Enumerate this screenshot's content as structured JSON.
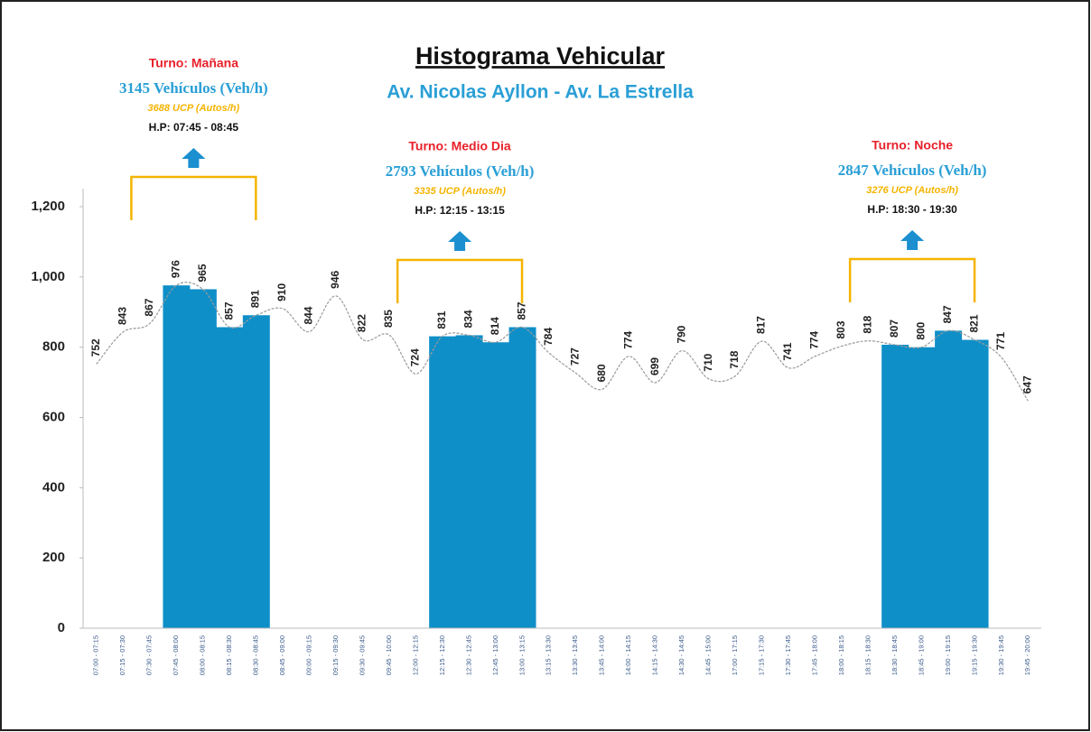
{
  "chart_data": {
    "type": "bar+line",
    "title": "Histograma Vehicular",
    "subtitle": "Av. Nicolas Ayllon - Av. La Estrella",
    "categories": [
      "07:00 - 07:15",
      "07:15 - 07:30",
      "07:30 - 07:45",
      "07:45 - 08:00",
      "08:00 - 08:15",
      "08:15 - 08:30",
      "08:30 - 08:45",
      "08:45 - 09:00",
      "09:00 - 09:15",
      "09:15 - 09:30",
      "09:30 - 09:45",
      "09:45 - 10:00",
      "12:00 - 12:15",
      "12:15 - 12:30",
      "12:30 - 12:45",
      "12:45 - 13:00",
      "13:00 - 13:15",
      "13:15 - 13:30",
      "13:30 - 13:45",
      "13:45 - 14:00",
      "14:00 - 14:15",
      "14:15 - 14:30",
      "14:30 - 14:45",
      "14:45 - 15:00",
      "17:00 - 17:15",
      "17:15 - 17:30",
      "17:30 - 17:45",
      "17:45 - 18:00",
      "18:00 - 18:15",
      "18:15 - 18:30",
      "18:30 - 18:45",
      "18:45 - 19:00",
      "19:00 - 19:15",
      "19:15 - 19:30",
      "19:30 - 19:45",
      "19:45 - 20:00"
    ],
    "values": [
      752,
      843,
      867,
      976,
      965,
      857,
      891,
      910,
      844,
      946,
      822,
      835,
      724,
      831,
      834,
      814,
      857,
      784,
      727,
      680,
      774,
      699,
      790,
      710,
      718,
      817,
      741,
      774,
      803,
      818,
      807,
      800,
      847,
      821,
      771,
      647
    ],
    "bar_color": "#0f8fc8",
    "line_color": "#9a9a9a",
    "ylim": [
      0,
      1200
    ],
    "yticks": [
      0,
      200,
      400,
      600,
      800,
      {
        "value": 1000,
        "label": "1,000"
      },
      {
        "value": 1200,
        "label": "1,200"
      }
    ],
    "annotations": [
      {
        "start": "07:45 - 08:00",
        "end": "08:30 - 08:45",
        "turno": "Turno: Mañana",
        "vehicles": "3145 Vehículos (Veh/h)",
        "ucp": "3688 UCP (Autos/h)",
        "hp": "H.P: 07:45 - 08:45"
      },
      {
        "start": "12:15 - 12:30",
        "end": "13:00 - 13:15",
        "turno": "Turno: Medio Dia",
        "vehicles": "2793 Vehículos (Veh/h)",
        "ucp": "3335 UCP (Autos/h)",
        "hp": "H.P: 12:15 - 13:15"
      },
      {
        "start": "18:30 - 18:45",
        "end": "19:15 - 19:30",
        "turno": "Turno: Noche",
        "vehicles": "2847 Vehículos (Veh/h)",
        "ucp": "3276 UCP (Autos/h)",
        "hp": "H.P: 18:30 - 19:30"
      }
    ]
  }
}
